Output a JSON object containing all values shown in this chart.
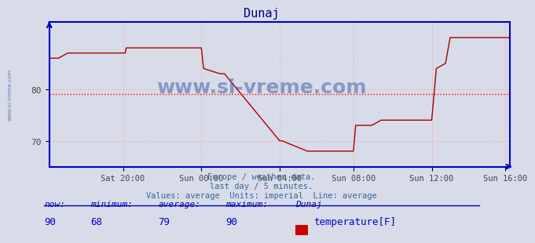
{
  "title": "Dunaj",
  "bg_color": "#d8dce8",
  "plot_bg_color": "#d8dce8",
  "line_color": "#aa0000",
  "avg_line_color": "#ff0000",
  "avg_line_style": "dotted",
  "average_value": 79,
  "ylim": [
    65,
    93
  ],
  "yticks": [
    70,
    80
  ],
  "ylabel_color": "#444444",
  "grid_color": "#ff9999",
  "grid_style": "dotted",
  "axis_color": "#0000cc",
  "title_color": "#000077",
  "watermark_color": "#3355aa",
  "subtitle_color": "#336699",
  "subtitle": "Europe / weather data.\nlast day / 5 minutes.\nValues: average  Units: imperial  Line: average",
  "now": 90,
  "minimum": 68,
  "average": 79,
  "maximum": 90,
  "station": "Dunaj",
  "parameter": "temperature[F]",
  "legend_color": "#cc0000",
  "stats_label_color": "#0000aa",
  "stats_value_color": "#0000cc",
  "x_tick_labels": [
    "Sat 20:00",
    "Sun 00:00",
    "Sun 04:00",
    "Sun 08:00",
    "Sun 12:00",
    "Sun 16:00"
  ],
  "x_tick_positions": [
    0.16,
    0.33,
    0.5,
    0.66,
    0.83,
    0.99
  ],
  "time_points": [
    0.0,
    0.02,
    0.04,
    0.165,
    0.167,
    0.33,
    0.335,
    0.37,
    0.38,
    0.5,
    0.505,
    0.56,
    0.57,
    0.66,
    0.665,
    0.7,
    0.72,
    0.78,
    0.83,
    0.84,
    0.86,
    0.87,
    1.0
  ],
  "temp_values": [
    86,
    86,
    87,
    87,
    88,
    88,
    84,
    83,
    83,
    70,
    70,
    68,
    68,
    68,
    73,
    73,
    74,
    74,
    74,
    84,
    85,
    90,
    90
  ]
}
